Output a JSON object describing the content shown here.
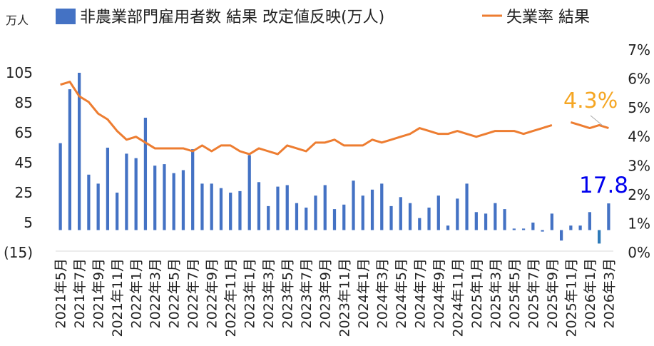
{
  "chart_data": {
    "type": "bar",
    "legend": {
      "placement": "top",
      "bar_label": "非農業部門雇用者数 結果 改定値反映(万人)",
      "line_label": "失業率 結果"
    },
    "y_left": {
      "unit_label": "万人",
      "ticks": [
        "105",
        "85",
        "65",
        "45",
        "25",
        "5",
        "(15)"
      ],
      "ylim": [
        -15,
        105
      ],
      "negative_tick_color": "#cc0000"
    },
    "y_right": {
      "ticks": [
        "7%",
        "6%",
        "5%",
        "4%",
        "3%",
        "2%",
        "1%",
        "0%"
      ],
      "ylim": [
        0,
        7
      ]
    },
    "colors": {
      "bar": "#4472c4",
      "bar_last_negative": "#2e7ab8",
      "line": "#ed7d31",
      "annotation_bar": "#0000ee",
      "annotation_line": "#f5a623"
    },
    "x": [
      "2021年5月",
      "2021年6月",
      "2021年7月",
      "2021年8月",
      "2021年9月",
      "2021年10月",
      "2021年11月",
      "2021年12月",
      "2022年1月",
      "2022年2月",
      "2022年3月",
      "2022年4月",
      "2022年5月",
      "2022年6月",
      "2022年7月",
      "2022年8月",
      "2022年9月",
      "2022年10月",
      "2022年11月",
      "2022年12月",
      "2023年1月",
      "2023年2月",
      "2023年3月",
      "2023年4月",
      "2023年5月",
      "2023年6月",
      "2023年7月",
      "2023年8月",
      "2023年9月",
      "2023年10月",
      "2023年11月",
      "2023年12月",
      "2024年1月",
      "2024年2月",
      "2024年3月",
      "2024年4月",
      "2024年5月",
      "2024年6月",
      "2024年7月",
      "2024年8月",
      "2024年9月",
      "2024年10月",
      "2024年11月",
      "2024年12月",
      "2025年1月",
      "2025年2月",
      "2025年3月",
      "2025年4月",
      "2025年5月",
      "2025年6月",
      "2025年7月",
      "2025年8月",
      "2025年9月",
      "2025年10月",
      "2025年11月",
      "2025年12月",
      "2026年1月",
      "2026年2月",
      "2026年3月"
    ],
    "x_tick_labels": [
      "2021年5月",
      "2021年7月",
      "2021年9月",
      "2021年11月",
      "2022年1月",
      "2022年3月",
      "2022年5月",
      "2022年7月",
      "2022年9月",
      "2022年11月",
      "2023年1月",
      "2023年3月",
      "2023年5月",
      "2023年7月",
      "2023年9月",
      "2023年11月",
      "2024年1月",
      "2024年3月",
      "2024年5月",
      "2024年7月",
      "2024年9月",
      "2024年11月",
      "2025年1月",
      "2025年3月",
      "2025年5月",
      "2025年7月",
      "2025年9月",
      "2025年11月",
      "2026年1月",
      "2026年3月"
    ],
    "series": [
      {
        "kind": "bar",
        "values": [
          58,
          94,
          105,
          37,
          31,
          55,
          25,
          51,
          48,
          75,
          43,
          44,
          38,
          40,
          54,
          31,
          31,
          28,
          25,
          26,
          50,
          32,
          16,
          29,
          30,
          18,
          15,
          23,
          30,
          14,
          17,
          33,
          23,
          27,
          31,
          16,
          22,
          18,
          8,
          15,
          23,
          3,
          21,
          31,
          12,
          11,
          18,
          14,
          1,
          1,
          5,
          -1,
          11,
          -7,
          3,
          3,
          12,
          -9,
          17.8
        ]
      },
      {
        "kind": "line",
        "axis": "right",
        "values": [
          5.8,
          5.9,
          5.4,
          5.2,
          4.8,
          4.6,
          4.2,
          3.9,
          4.0,
          3.8,
          3.6,
          3.6,
          3.6,
          3.6,
          3.5,
          3.7,
          3.5,
          3.7,
          3.7,
          3.5,
          3.4,
          3.6,
          3.5,
          3.4,
          3.7,
          3.6,
          3.5,
          3.8,
          3.8,
          3.9,
          3.7,
          3.7,
          3.7,
          3.9,
          3.8,
          3.9,
          4.0,
          4.1,
          4.3,
          4.2,
          4.1,
          4.1,
          4.2,
          4.1,
          4.0,
          4.1,
          4.2,
          4.2,
          4.2,
          4.1,
          4.2,
          4.3,
          4.4,
          null,
          4.5,
          4.4,
          4.3,
          4.4,
          4.3
        ]
      }
    ],
    "annotations": {
      "last_bar": "17.8",
      "last_line": "4.3%"
    }
  }
}
